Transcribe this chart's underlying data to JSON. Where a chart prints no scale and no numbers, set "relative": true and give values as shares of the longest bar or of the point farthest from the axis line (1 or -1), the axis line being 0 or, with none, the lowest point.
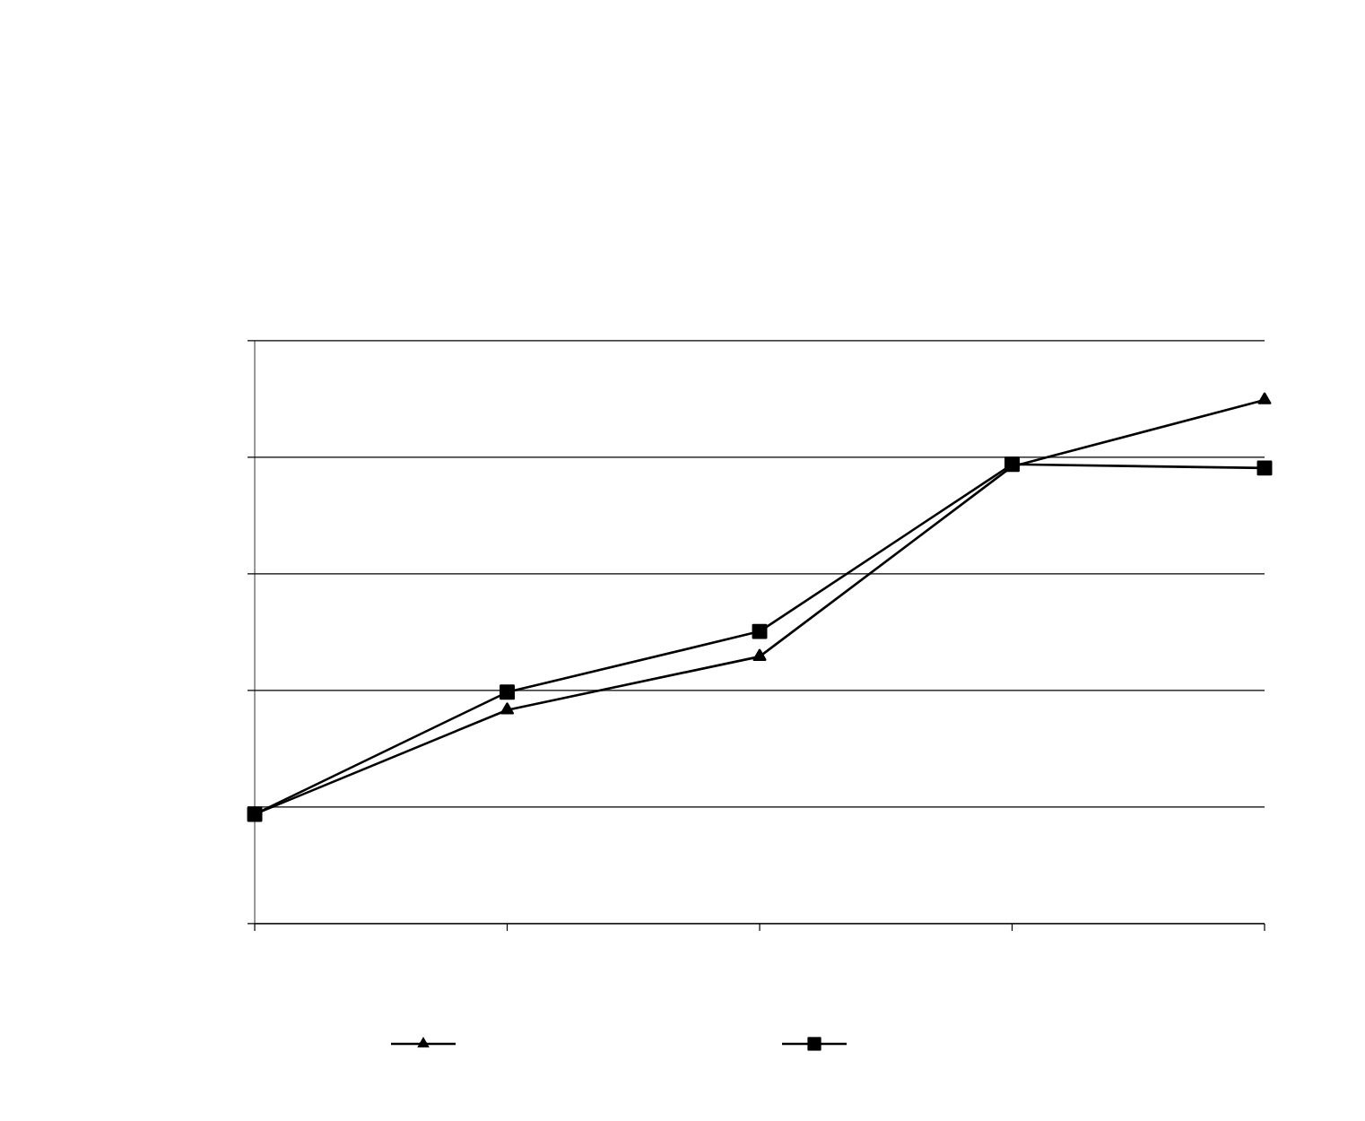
{
  "chart_data": {
    "type": "line",
    "relative": true,
    "categories": [
      null,
      null,
      null,
      null,
      null
    ],
    "series": [
      {
        "color": "#000000",
        "marker": "triangle",
        "values": [
          0.209,
          0.408,
          0.51,
          0.873,
          1
        ]
      },
      {
        "color": "#000000",
        "marker": "square",
        "values": [
          0.209,
          0.442,
          0.558,
          0.877,
          0.87
        ]
      }
    ],
    "grid": "y",
    "line_style": "solid"
  }
}
